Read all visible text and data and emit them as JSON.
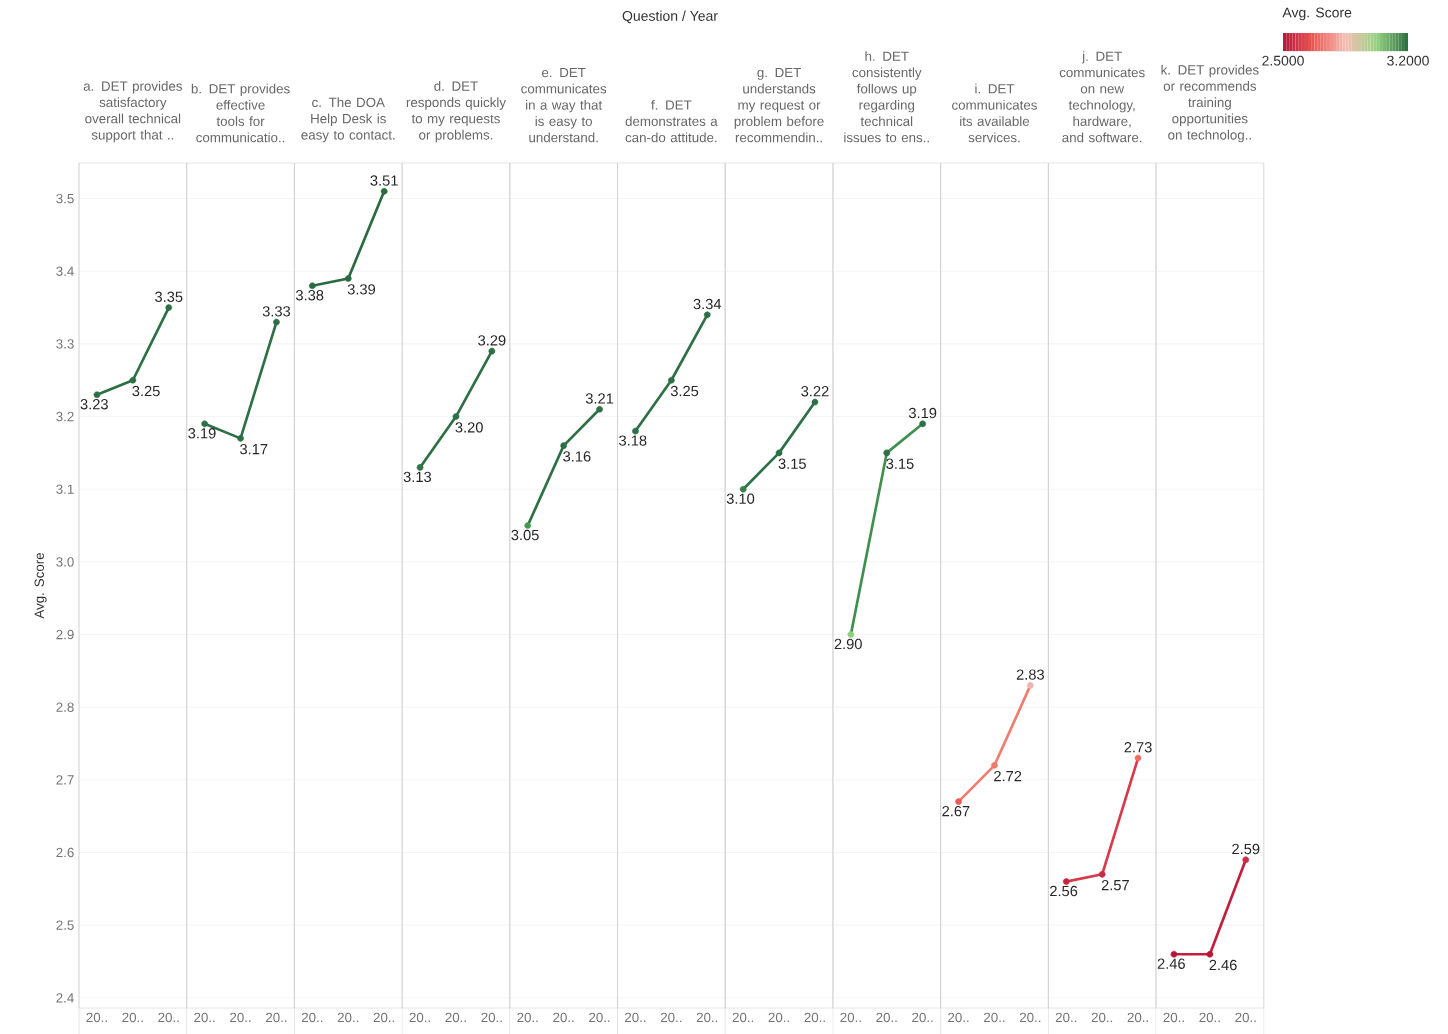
{
  "chart_data": [
    {
      "type": "line",
      "title": "a. DET provides satisfactory overall technical support that ..",
      "ylabel": "Avg. Score",
      "annotations": [
        "Question / Year"
      ],
      "clabel": "Avg. Score",
      "clim": [
        2.5,
        3.2
      ],
      "cticks": [
        {
          "value": 2.5,
          "label": "2.5000"
        },
        {
          "value": 3.2,
          "label": "3.2000"
        }
      ],
      "categories": [
        "20..",
        "20..",
        "20.."
      ],
      "values": [
        3.23,
        3.25,
        3.35
      ],
      "value_labels": [
        "3.23",
        "3.25",
        "3.35"
      ],
      "color": "#2e7046",
      "colors": [
        "#2e7046",
        "#2e7046",
        "#2e7046"
      ],
      "ylim": [
        2.386,
        3.549
      ],
      "yticks": [
        2.4,
        2.5,
        2.6,
        2.7,
        2.8,
        2.9,
        {
          "value": 3.0,
          "label": "3.0"
        },
        3.1,
        3.2,
        3.3,
        3.4,
        3.5
      ],
      "grid": "y",
      "marker": "circle"
    },
    {
      "type": "line",
      "title": "b. DET provides effective tools for communicatio..",
      "categories": [
        "20..",
        "20..",
        "20.."
      ],
      "values": [
        3.19,
        3.17,
        3.33
      ],
      "value_labels": [
        "3.19",
        "3.17",
        "3.33"
      ],
      "color": "#2e7046",
      "colors": [
        "#2e7046",
        "#2e7046",
        "#2e7046"
      ],
      "ylim": [
        2.386,
        3.549
      ],
      "grid": "y",
      "marker": "circle",
      "tick_labels": "x"
    },
    {
      "type": "line",
      "title": "c. The DOA Help Desk is easy to contact.",
      "categories": [
        "20..",
        "20..",
        "20.."
      ],
      "values": [
        3.38,
        3.39,
        3.51
      ],
      "value_labels": [
        "3.38",
        "3.39",
        "3.51"
      ],
      "color": "#2a6a40",
      "colors": [
        "#2a6a40",
        "#2a6a40",
        "#2a6a40"
      ],
      "ylim": [
        2.386,
        3.549
      ],
      "grid": "y",
      "marker": "circle",
      "tick_labels": "x"
    },
    {
      "type": "line",
      "title": "d. DET responds quickly to my requests or problems.",
      "categories": [
        "20..",
        "20..",
        "20.."
      ],
      "values": [
        3.13,
        3.2,
        3.29
      ],
      "value_labels": [
        "3.13",
        "3.20",
        "3.29"
      ],
      "color": "#2e7046",
      "colors": [
        "#30764a",
        "#2e7046",
        "#2e7046"
      ],
      "ylim": [
        2.386,
        3.549
      ],
      "grid": "y",
      "marker": "circle",
      "tick_labels": "x"
    },
    {
      "type": "line",
      "title": "e. DET communicates in a way that is easy to understand.",
      "categories": [
        "20..",
        "20..",
        "20.."
      ],
      "values": [
        3.05,
        3.16,
        3.21
      ],
      "value_labels": [
        "3.05",
        "3.16",
        "3.21"
      ],
      "color": "#2e7046",
      "colors": [
        "#45994f",
        "#2e7046",
        "#2e7046"
      ],
      "ylim": [
        2.386,
        3.549
      ],
      "grid": "y",
      "marker": "circle",
      "tick_labels": "x"
    },
    {
      "type": "line",
      "title": "f. DET demonstrates a can-do attitude.",
      "categories": [
        "20..",
        "20..",
        "20.."
      ],
      "values": [
        3.18,
        3.25,
        3.34
      ],
      "value_labels": [
        "3.18",
        "3.25",
        "3.34"
      ],
      "color": "#2e7046",
      "colors": [
        "#2e7046",
        "#2e7046",
        "#2e7046"
      ],
      "ylim": [
        2.386,
        3.549
      ],
      "grid": "y",
      "marker": "circle",
      "tick_labels": "x"
    },
    {
      "type": "line",
      "title": "g. DET understands my request or problem before recommendin..",
      "categories": [
        "20..",
        "20..",
        "20.."
      ],
      "values": [
        3.1,
        3.15,
        3.22
      ],
      "value_labels": [
        "3.10",
        "3.15",
        "3.22"
      ],
      "color": "#2e7046",
      "colors": [
        "#35804b",
        "#2e7046",
        "#2e7046"
      ],
      "ylim": [
        2.386,
        3.549
      ],
      "grid": "y",
      "marker": "circle",
      "tick_labels": "x"
    },
    {
      "type": "line",
      "title": "h. DET consistently follows up regarding technical issues to ens..",
      "categories": [
        "20..",
        "20..",
        "20.."
      ],
      "values": [
        2.9,
        3.15,
        3.19
      ],
      "value_labels": [
        "2.90",
        "3.15",
        "3.19"
      ],
      "color": "#3f8f4e",
      "colors": [
        "#8fd07f",
        "#2e7046",
        "#2e7046"
      ],
      "ylim": [
        2.386,
        3.549
      ],
      "grid": "y",
      "marker": "circle",
      "tick_labels": "x"
    },
    {
      "type": "line",
      "title": "i. DET communicates its available services.",
      "categories": [
        "20..",
        "20..",
        "20.."
      ],
      "values": [
        2.67,
        2.72,
        2.83
      ],
      "value_labels": [
        "2.67",
        "2.72",
        "2.83"
      ],
      "color": "#ee7d70",
      "colors": [
        "#ea5b58",
        "#ef7a6c",
        "#ebb8ae"
      ],
      "ylim": [
        2.386,
        3.549
      ],
      "grid": "y",
      "marker": "circle",
      "tick_labels": "x"
    },
    {
      "type": "line",
      "title": "j. DET communicates on new technology, hardware, and software.",
      "categories": [
        "20..",
        "20..",
        "20.."
      ],
      "values": [
        2.56,
        2.57,
        2.73
      ],
      "value_labels": [
        "2.56",
        "2.57",
        "2.73"
      ],
      "color": "#d63a4b",
      "colors": [
        "#c8243f",
        "#cb2a45",
        "#ee6d62"
      ],
      "ylim": [
        2.386,
        3.549
      ],
      "grid": "y",
      "marker": "circle",
      "tick_labels": "x"
    },
    {
      "type": "line",
      "title": "k. DET provides or recommends training opportunities on technolog..",
      "categories": [
        "20..",
        "20..",
        "20.."
      ],
      "values": [
        2.46,
        2.46,
        2.59
      ],
      "value_labels": [
        "2.46",
        "2.46",
        "2.59"
      ],
      "color": "#c01f3e",
      "colors": [
        "#b5173a",
        "#b5173a",
        "#cc2b45"
      ],
      "ylim": [
        2.386,
        3.549
      ],
      "grid": "y",
      "marker": "circle",
      "tick_labels": "x"
    }
  ]
}
